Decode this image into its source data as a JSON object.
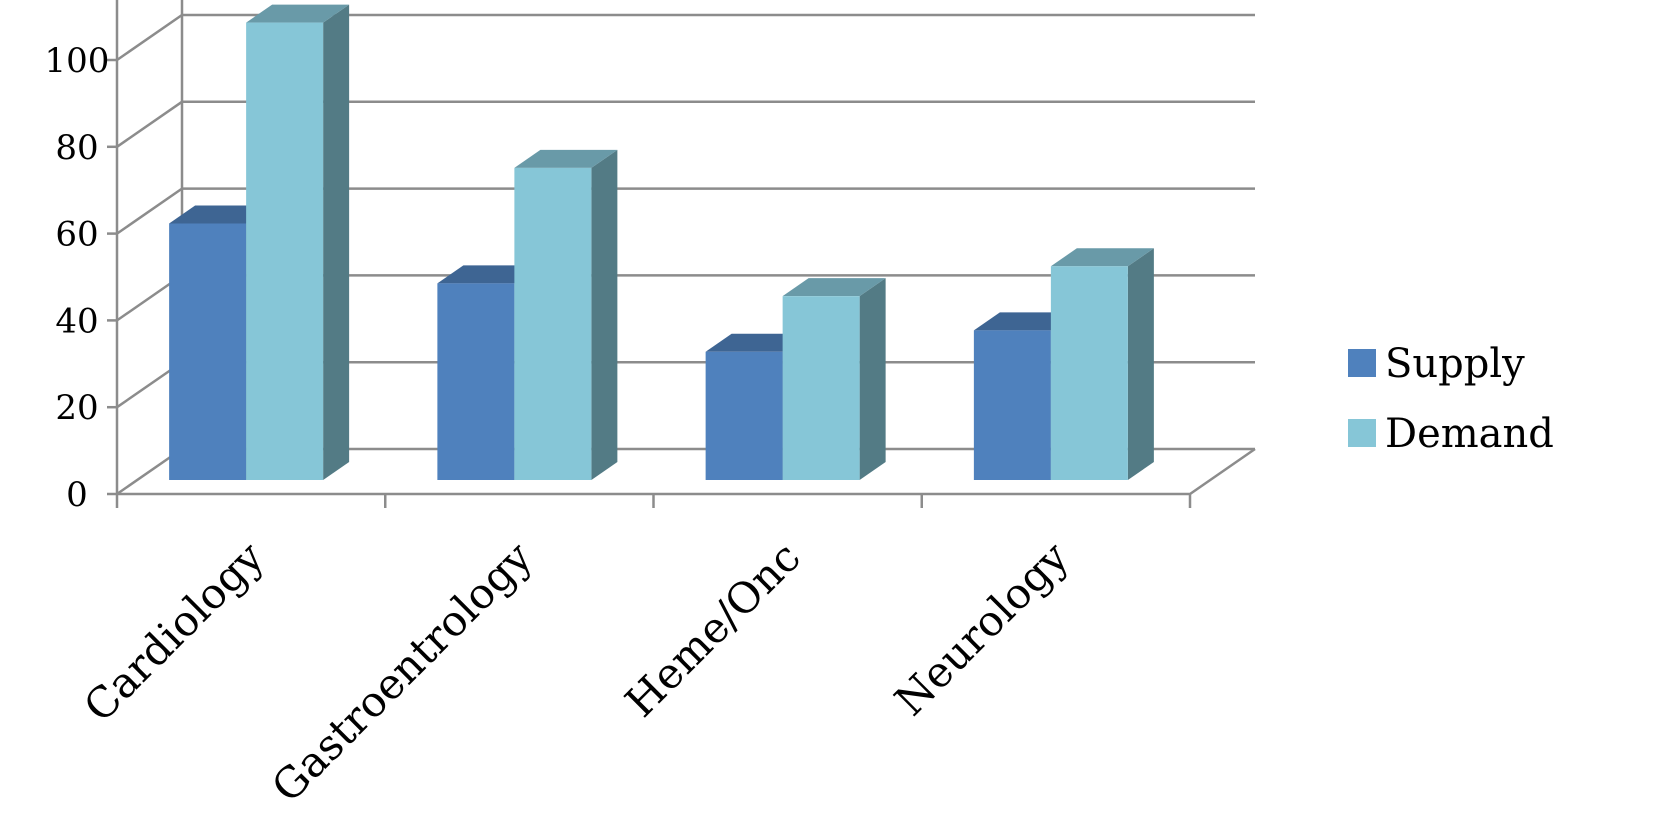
{
  "chart_data": {
    "type": "bar",
    "categories": [
      "Cardiology",
      "Gastroentrology",
      "Heme/Onc",
      "Neurology"
    ],
    "series": [
      {
        "name": "Supply",
        "values": [
          60,
          46,
          30,
          35
        ],
        "color": "#4F81BD"
      },
      {
        "name": "Demand",
        "values": [
          107,
          73,
          43,
          50
        ],
        "color": "#86C6D7"
      }
    ],
    "ylim": [
      0,
      120
    ],
    "yticks": [
      0,
      20,
      40,
      60,
      80,
      100,
      120
    ],
    "grid": true,
    "legend_position": "right",
    "style": "3d-column"
  }
}
